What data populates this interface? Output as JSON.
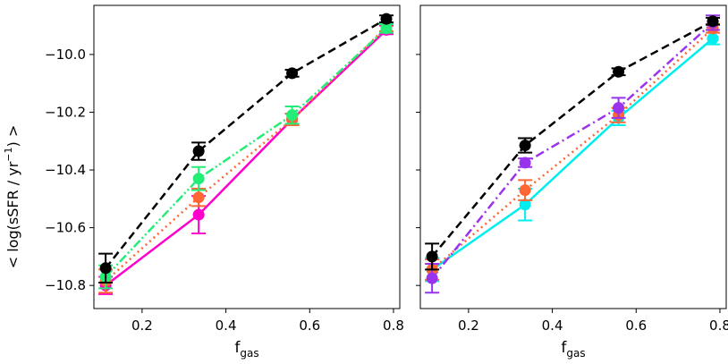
{
  "chart_data": {
    "type": "line",
    "shared_ylabel": "< log(sSFR / yr",
    "shared_ylabel_sup": "−1",
    "shared_ylabel_end": ") >",
    "ylim": [
      -10.88,
      -9.83
    ],
    "yticks": [
      -10.8,
      -10.6,
      -10.4,
      -10.2,
      -10.0
    ],
    "ytick_labels": [
      "−10.8",
      "−10.6",
      "−10.4",
      "−10.2",
      "−10.0"
    ],
    "xlim": [
      0.085,
      0.815
    ],
    "xticks": [
      0.2,
      0.4,
      0.6,
      0.8
    ],
    "xtick_labels": [
      "0.2",
      "0.4",
      "0.6",
      "0.8"
    ],
    "xlabel_main": "f",
    "xlabel_sub": "gas",
    "panels": [
      {
        "series": [
          {
            "name": "black",
            "color": "#000000",
            "dash": "dashed",
            "x": [
              0.113,
              0.335,
              0.558,
              0.783
            ],
            "y": [
              -10.74,
              -10.335,
              -10.065,
              -9.877
            ],
            "err": [
              0.05,
              0.03,
              0.012,
              0.012
            ]
          },
          {
            "name": "green",
            "color": "#22ee77",
            "dash": "dashdotdot",
            "x": [
              0.113,
              0.335,
              0.558,
              0.783
            ],
            "y": [
              -10.77,
              -10.43,
              -10.21,
              -9.91
            ],
            "err": [
              0.04,
              0.04,
              0.03,
              0.015
            ]
          },
          {
            "name": "orange",
            "color": "#ff6633",
            "dash": "dotted",
            "x": [
              0.113,
              0.335,
              0.558,
              0.783
            ],
            "y": [
              -10.785,
              -10.495,
              -10.225,
              -9.905
            ],
            "err": [
              0.04,
              0.03,
              0.02,
              0.015
            ]
          },
          {
            "name": "magenta",
            "color": "#ff00cc",
            "dash": "solid",
            "x": [
              0.113,
              0.335,
              0.558,
              0.783
            ],
            "y": [
              -10.8,
              -10.555,
              -10.225,
              -9.915
            ],
            "err": [
              0.03,
              0.065,
              0.02,
              0.015
            ]
          }
        ]
      },
      {
        "series": [
          {
            "name": "black",
            "color": "#000000",
            "dash": "dashed",
            "x": [
              0.113,
              0.335,
              0.558,
              0.783
            ],
            "y": [
              -10.7,
              -10.315,
              -10.06,
              -9.885
            ],
            "err": [
              0.045,
              0.025,
              0.012,
              0.012
            ]
          },
          {
            "name": "purple",
            "color": "#9933ee",
            "dash": "dashdot",
            "x": [
              0.113,
              0.335,
              0.558,
              0.783
            ],
            "y": [
              -10.775,
              -10.375,
              -10.185,
              -9.89
            ],
            "err": [
              0.05,
              0.015,
              0.035,
              0.025
            ]
          },
          {
            "name": "orange",
            "color": "#ff6633",
            "dash": "dotted",
            "x": [
              0.113,
              0.335,
              0.558,
              0.783
            ],
            "y": [
              -10.745,
              -10.47,
              -10.21,
              -9.91
            ],
            "err": [
              0.035,
              0.035,
              0.025,
              0.015
            ]
          },
          {
            "name": "cyan",
            "color": "#00eeee",
            "dash": "solid",
            "x": [
              0.113,
              0.335,
              0.558,
              0.783
            ],
            "y": [
              -10.745,
              -10.52,
              -10.22,
              -9.945
            ],
            "err": [
              0.04,
              0.055,
              0.025,
              0.02
            ]
          }
        ]
      }
    ]
  }
}
